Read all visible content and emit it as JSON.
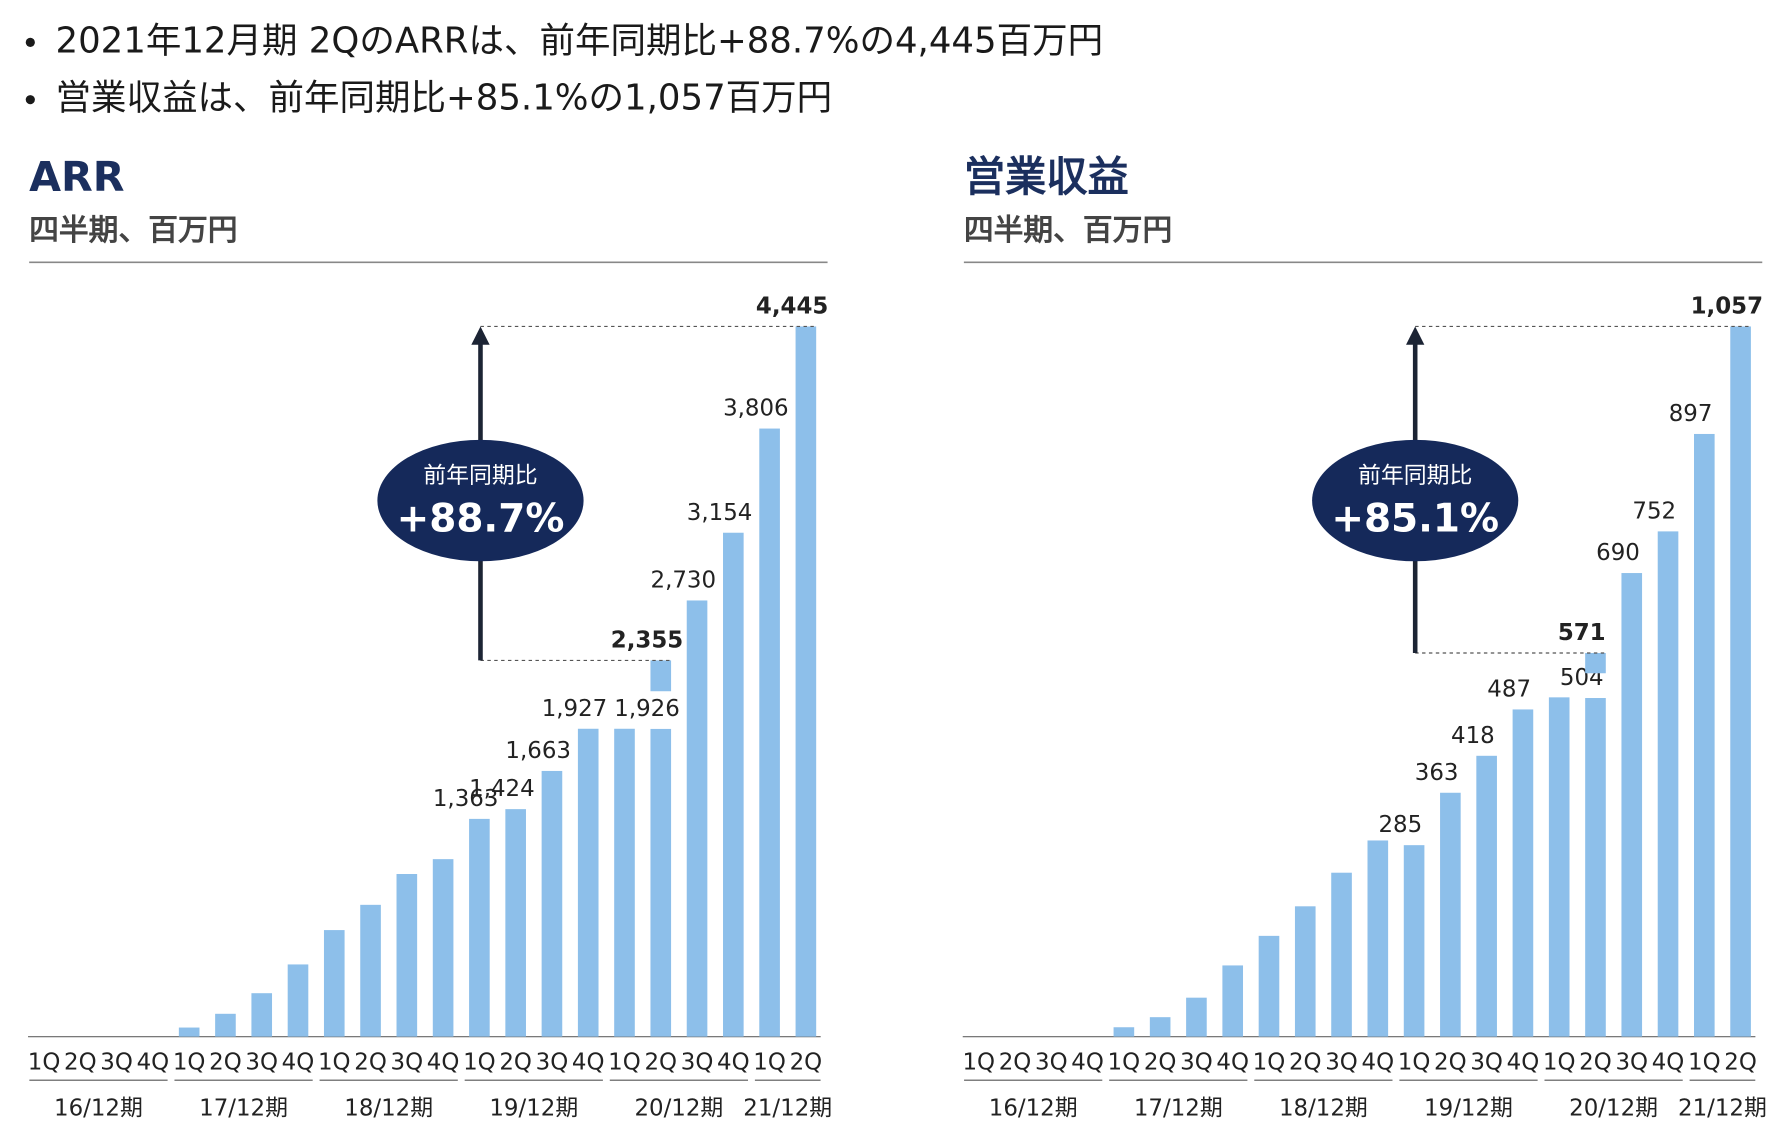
{
  "bullets": [
    "2021年12月期 2QのARRは、前年同期比+88.7%の4,445百万円",
    "営業収益は、前年同期比+85.1%の1,057百万円"
  ],
  "chart_data": [
    {
      "type": "bar",
      "title": "ARR",
      "subtitle": "四半期、百万円",
      "color": "#8dbfea",
      "categories": [
        "1Q",
        "2Q",
        "3Q",
        "4Q",
        "1Q",
        "2Q",
        "3Q",
        "4Q",
        "1Q",
        "2Q",
        "3Q",
        "4Q",
        "1Q",
        "2Q",
        "3Q",
        "4Q",
        "1Q",
        "2Q",
        "3Q",
        "4Q",
        "1Q",
        "2Q"
      ],
      "groups": [
        "16/12期",
        "17/12期",
        "18/12期",
        "19/12期",
        "20/12期",
        "21/12期"
      ],
      "values": [
        0,
        0,
        0,
        0,
        57,
        143,
        272,
        452,
        667,
        825,
        1018,
        1111,
        1363,
        1424,
        1663,
        1927,
        1927,
        1926,
        2730,
        3154,
        3806,
        4445
      ],
      "value_labels": [
        null,
        null,
        null,
        null,
        null,
        null,
        null,
        null,
        null,
        null,
        null,
        null,
        "1,363",
        "1,424",
        "1,663",
        "1,927",
        null,
        "1,926",
        "2,730",
        "3,154",
        "3,806",
        "4,445"
      ],
      "reference": {
        "value": 2355,
        "label": "2,355"
      },
      "growth_caption": "前年同期比",
      "growth_label": "+88.7%"
    },
    {
      "type": "bar",
      "title": "営業収益",
      "subtitle": "四半期、百万円",
      "color": "#8dbfea",
      "categories": [
        "1Q",
        "2Q",
        "3Q",
        "4Q",
        "1Q",
        "2Q",
        "3Q",
        "4Q",
        "1Q",
        "2Q",
        "3Q",
        "4Q",
        "1Q",
        "2Q",
        "3Q",
        "4Q",
        "1Q",
        "2Q",
        "3Q",
        "4Q",
        "1Q",
        "2Q"
      ],
      "groups": [
        "16/12期",
        "17/12期",
        "18/12期",
        "19/12期",
        "20/12期",
        "21/12期"
      ],
      "values": [
        0,
        0,
        0,
        0,
        14,
        29,
        58,
        106,
        150,
        194,
        244,
        292,
        285,
        363,
        418,
        487,
        505,
        504,
        690,
        752,
        897,
        1057
      ],
      "value_labels": [
        null,
        null,
        null,
        null,
        null,
        null,
        null,
        null,
        null,
        null,
        null,
        null,
        "285",
        "363",
        "418",
        "487",
        null,
        "504",
        "690",
        "752",
        "897",
        "1,057"
      ],
      "reference": {
        "value": 571,
        "label": "571"
      },
      "growth_caption": "前年同期比",
      "growth_label": "+85.1%"
    }
  ]
}
